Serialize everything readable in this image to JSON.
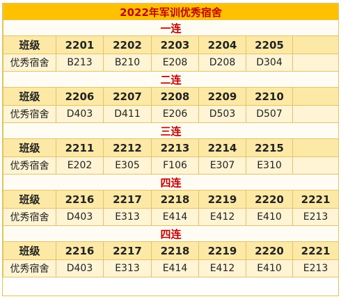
{
  "title": "2022年军训优秀宿舍",
  "sections": [
    {
      "name": "一连",
      "header_label": "班级",
      "value_label": "优秀宿舍",
      "classes": [
        "2201",
        "2202",
        "2203",
        "2204",
        "2205",
        ""
      ],
      "rooms": [
        "B213",
        "B210",
        "E208",
        "D208",
        "D304",
        ""
      ]
    },
    {
      "name": "二连",
      "header_label": "班级",
      "value_label": "优秀宿舍",
      "classes": [
        "2206",
        "2207",
        "2208",
        "2209",
        "2210",
        ""
      ],
      "rooms": [
        "D403",
        "D411",
        "E206",
        "D503",
        "D507",
        ""
      ]
    },
    {
      "name": "三连",
      "header_label": "班级",
      "value_label": "优秀宿舍",
      "classes": [
        "2211",
        "2212",
        "2213",
        "2214",
        "2215",
        ""
      ],
      "rooms": [
        "E202",
        "E305",
        "F106",
        "E307",
        "E310",
        ""
      ]
    },
    {
      "name": "四连",
      "header_label": "班级",
      "value_label": "优秀宿舍",
      "classes": [
        "2216",
        "2217",
        "2218",
        "2219",
        "2220",
        "2221"
      ],
      "rooms": [
        "D403",
        "E313",
        "E414",
        "E412",
        "E410",
        "E213"
      ]
    },
    {
      "name": "四连",
      "header_label": "班级",
      "value_label": "优秀宿舍",
      "classes": [
        "2216",
        "2217",
        "2218",
        "2219",
        "2220",
        "2221"
      ],
      "rooms": [
        "D403",
        "E313",
        "E414",
        "E412",
        "E410",
        "E213"
      ]
    }
  ]
}
